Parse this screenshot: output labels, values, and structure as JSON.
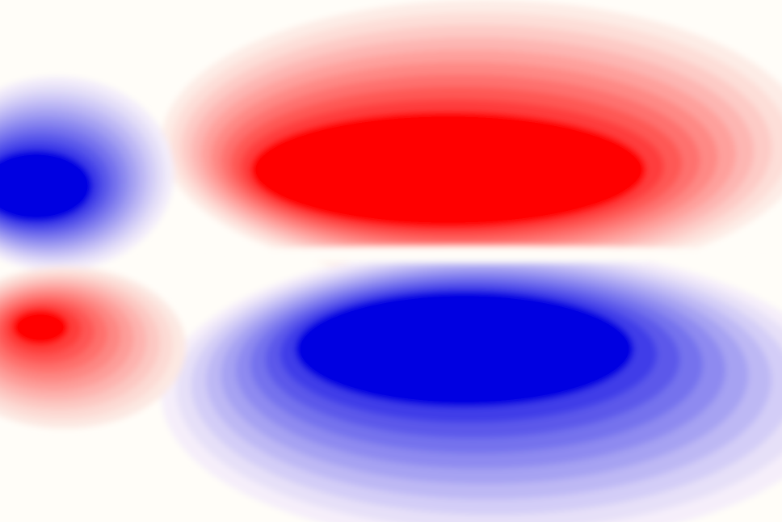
{
  "chart_data": {
    "type": "contour"
  }
}
